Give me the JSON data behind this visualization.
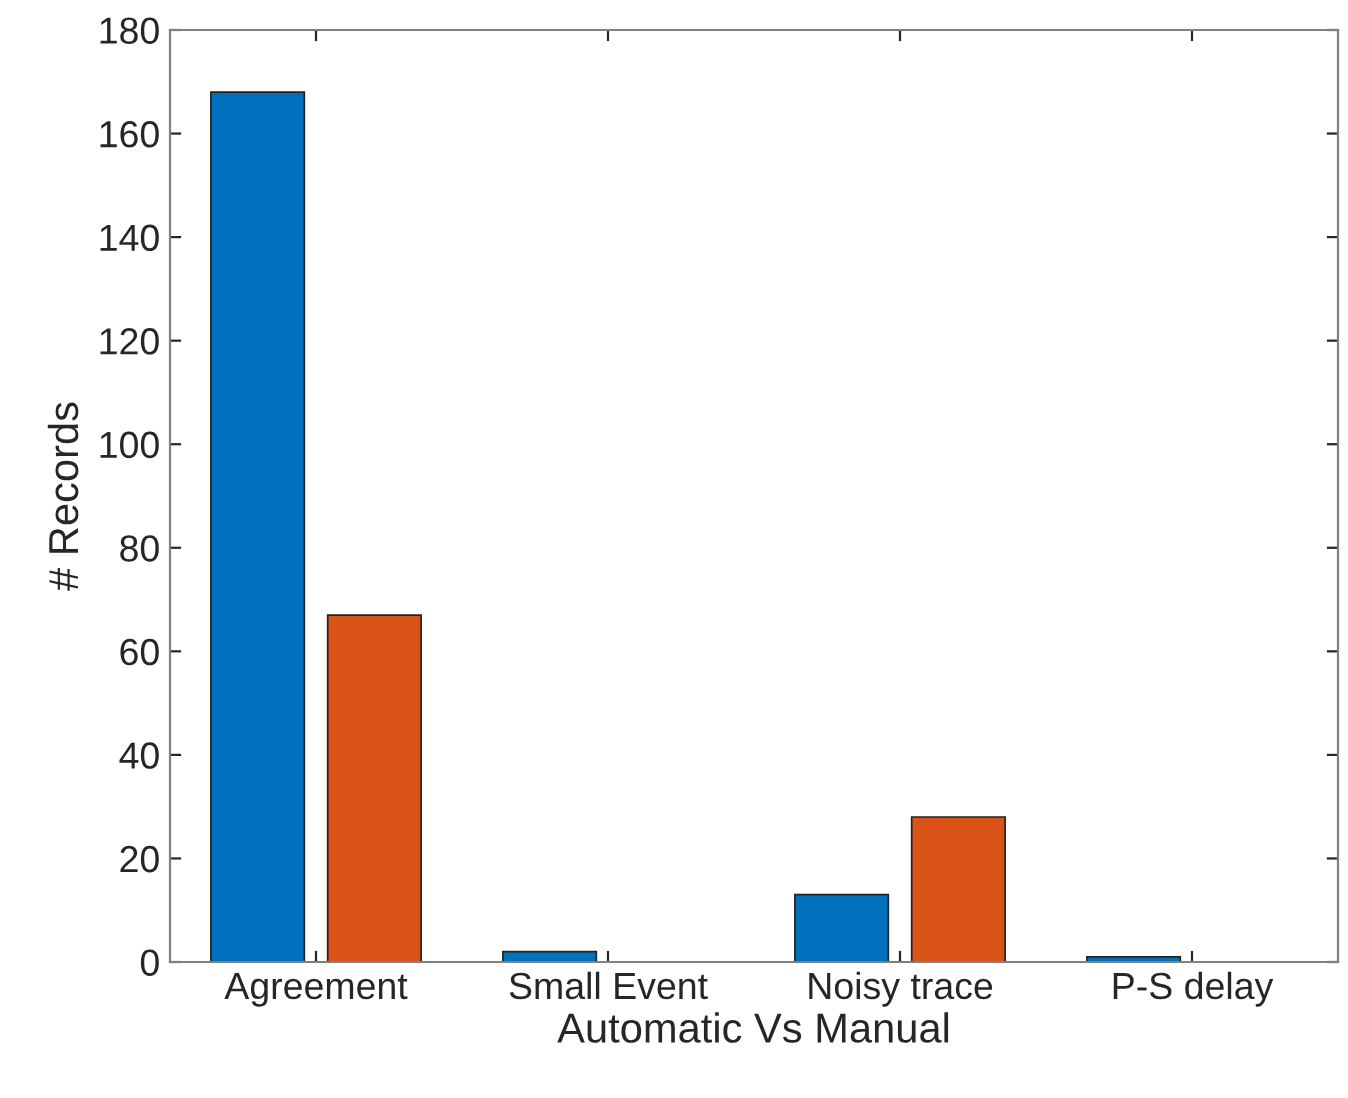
{
  "chart_data": {
    "type": "bar",
    "xlabel": "Automatic Vs Manual",
    "ylabel": "# Records",
    "categories": [
      "Agreement",
      "Small Event",
      "Noisy trace",
      "P-S delay"
    ],
    "series": [
      {
        "color": "#0072bd",
        "values": [
          168,
          2,
          13,
          1
        ]
      },
      {
        "color": "#d95319",
        "values": [
          67,
          0,
          28,
          0
        ]
      }
    ],
    "ylim": [
      0,
      180
    ],
    "yticks": [
      0,
      20,
      40,
      60,
      80,
      100,
      120,
      140,
      160,
      180
    ],
    "grid": false,
    "legend": false
  }
}
